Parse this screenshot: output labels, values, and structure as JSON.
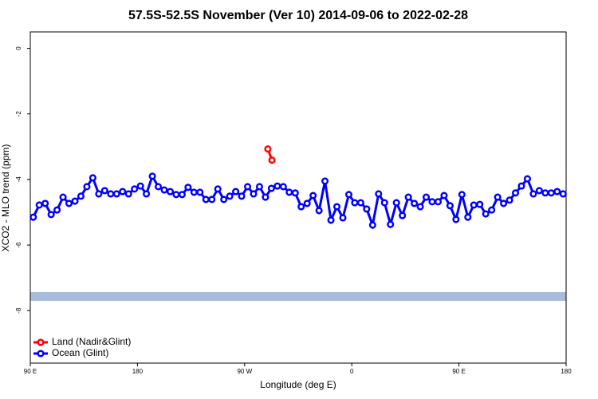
{
  "chart_data": {
    "type": "line",
    "title": "57.5S-52.5S November (Ver 10)   2014-09-06 to 2022-02-28",
    "x_label": "Longitude (deg E)",
    "y_label": "XCO2 - MLO trend (ppm)",
    "xlim": [
      90,
      540
    ],
    "ylim": [
      -9.6,
      0.5
    ],
    "xticks": [
      {
        "value": 90,
        "label": "90 E"
      },
      180,
      {
        "value": 270,
        "label": "90 W"
      },
      {
        "value": 360,
        "label": "0"
      },
      {
        "value": 450,
        "label": "90 E"
      },
      {
        "value": 540,
        "label": "180"
      }
    ],
    "yticks": [
      0,
      -2,
      -4,
      -6,
      -8
    ],
    "legend": "bottom-left",
    "series": [
      {
        "name": "Land (Nadir&Glint)",
        "color": "#ff0000",
        "x": [
          289.5,
          293
        ],
        "values": [
          -3.07,
          -3.41
        ]
      },
      {
        "name": "Ocean (Glint)",
        "color": "#0000ff",
        "x": [
          92.5,
          97.5,
          102.5,
          107.5,
          112.5,
          117.5,
          122.5,
          127.5,
          132.5,
          137.5,
          142.5,
          147.5,
          152.5,
          157.5,
          162.5,
          167.5,
          172.5,
          177.5,
          182.5,
          187.5,
          192.5,
          197.5,
          202.5,
          207.5,
          212.5,
          217.5,
          222.5,
          227.5,
          232.5,
          237.5,
          242.5,
          247.5,
          252.5,
          257.5,
          262.5,
          267.5,
          272.5,
          277.5,
          282.5,
          287.5,
          292.5,
          297.5,
          302.5,
          307.5,
          312.5,
          317.5,
          322.5,
          327.5,
          332.5,
          337.5,
          342.5,
          347.5,
          352.5,
          357.5,
          362.5,
          367.5,
          372.5,
          377.5,
          382.5,
          387.5,
          392.5,
          397.5,
          402.5,
          407.5,
          412.5,
          417.5,
          422.5,
          427.5,
          432.5,
          437.5,
          442.5,
          447.5,
          452.5,
          457.5,
          462.5,
          467.5,
          472.5,
          477.5,
          482.5,
          487.5,
          492.5,
          497.5,
          502.5,
          507.5,
          512.5,
          517.5,
          522.5,
          527.5,
          532.5,
          537.5
        ],
        "values": [
          -5.15,
          -4.78,
          -4.73,
          -5.07,
          -4.93,
          -4.54,
          -4.73,
          -4.66,
          -4.51,
          -4.22,
          -3.95,
          -4.44,
          -4.34,
          -4.44,
          -4.44,
          -4.37,
          -4.44,
          -4.29,
          -4.2,
          -4.44,
          -3.9,
          -4.22,
          -4.32,
          -4.37,
          -4.46,
          -4.46,
          -4.24,
          -4.39,
          -4.39,
          -4.61,
          -4.61,
          -4.29,
          -4.61,
          -4.51,
          -4.37,
          -4.51,
          -4.22,
          -4.44,
          -4.22,
          -4.54,
          -4.27,
          -4.2,
          -4.22,
          -4.39,
          -4.41,
          -4.83,
          -4.73,
          -4.49,
          -4.95,
          -4.05,
          -5.24,
          -4.83,
          -5.17,
          -4.46,
          -4.71,
          -4.71,
          -4.9,
          -5.39,
          -4.44,
          -4.71,
          -5.37,
          -4.71,
          -5.1,
          -4.54,
          -4.73,
          -4.83,
          -4.54,
          -4.68,
          -4.68,
          -4.49,
          -4.8,
          -5.22,
          -4.46,
          -5.15,
          -4.78,
          -4.76,
          -5.05,
          -4.93,
          -4.54,
          -4.73,
          -4.63,
          -4.41,
          -4.2,
          -3.98,
          -4.44,
          -4.34,
          -4.41,
          -4.41,
          -4.37,
          -4.44
        ]
      }
    ]
  }
}
